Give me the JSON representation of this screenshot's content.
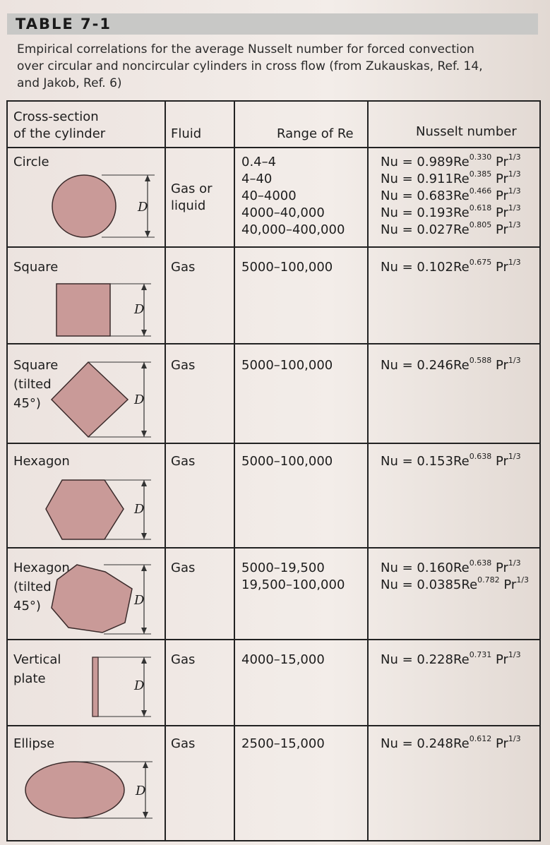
{
  "table_label": "TABLE 7-1",
  "caption_lines": [
    "Empirical correlations for the average Nusselt number for forced convection",
    "over circular and noncircular cylinders in cross flow (from Zukauskas, Ref. 14,",
    "and Jakob, Ref. 6)"
  ],
  "headers": {
    "cross_section_1": "Cross-section",
    "cross_section_2": "of the cylinder",
    "fluid": "Fluid",
    "range": "Range of Re",
    "nusselt": "Nusselt number"
  },
  "dimension_label": "D",
  "rows": [
    {
      "name_lines": [
        "Circle"
      ],
      "fluid_lines": [
        "Gas or",
        "liquid"
      ],
      "ranges": [
        "0.4–4",
        "4–40",
        "40–4000",
        "4000–40,000",
        "40,000–400,000"
      ],
      "nusselt": [
        {
          "lhs": "Nu = ",
          "coef": "0.989",
          "re": "Re",
          "re_exp": "0.330",
          "pr": " Pr",
          "pr_exp": "1/3"
        },
        {
          "lhs": "Nu = ",
          "coef": "0.911",
          "re": "Re",
          "re_exp": "0.385",
          "pr": " Pr",
          "pr_exp": "1/3"
        },
        {
          "lhs": "Nu = ",
          "coef": "0.683",
          "re": "Re",
          "re_exp": "0.466",
          "pr": " Pr",
          "pr_exp": "1/3"
        },
        {
          "lhs": "Nu = ",
          "coef": "0.193",
          "re": "Re",
          "re_exp": "0.618",
          "pr": " Pr",
          "pr_exp": "1/3"
        },
        {
          "lhs": "Nu = ",
          "coef": "0.027",
          "re": "Re",
          "re_exp": "0.805",
          "pr": " Pr",
          "pr_exp": "1/3"
        }
      ]
    },
    {
      "name_lines": [
        "Square"
      ],
      "fluid_lines": [
        "Gas"
      ],
      "ranges": [
        "5000–100,000"
      ],
      "nusselt": [
        {
          "lhs": "Nu = ",
          "coef": "0.102",
          "re": "Re",
          "re_exp": "0.675",
          "pr": " Pr",
          "pr_exp": "1/3"
        }
      ]
    },
    {
      "name_lines": [
        "Square",
        "(tilted",
        "45°)"
      ],
      "fluid_lines": [
        "Gas"
      ],
      "ranges": [
        "5000–100,000"
      ],
      "nusselt": [
        {
          "lhs": "Nu = ",
          "coef": "0.246",
          "re": "Re",
          "re_exp": "0.588",
          "pr": " Pr",
          "pr_exp": "1/3"
        }
      ]
    },
    {
      "name_lines": [
        "Hexagon"
      ],
      "fluid_lines": [
        "Gas"
      ],
      "ranges": [
        "5000–100,000"
      ],
      "nusselt": [
        {
          "lhs": "Nu = ",
          "coef": "0.153",
          "re": "Re",
          "re_exp": "0.638",
          "pr": " Pr",
          "pr_exp": "1/3"
        }
      ]
    },
    {
      "name_lines": [
        "Hexagon",
        "(tilted",
        "45°)"
      ],
      "fluid_lines": [
        "Gas"
      ],
      "ranges": [
        "5000–19,500",
        "19,500–100,000"
      ],
      "nusselt": [
        {
          "lhs": "Nu = ",
          "coef": "0.160",
          "re": "Re",
          "re_exp": "0.638",
          "pr": " Pr",
          "pr_exp": "1/3"
        },
        {
          "lhs": "Nu = ",
          "coef": "0.0385",
          "re": "Re",
          "re_exp": "0.782",
          "pr": " Pr",
          "pr_exp": "1/3"
        }
      ]
    },
    {
      "name_lines": [
        "Vertical",
        "plate"
      ],
      "fluid_lines": [
        "Gas"
      ],
      "ranges": [
        "4000–15,000"
      ],
      "nusselt": [
        {
          "lhs": "Nu = ",
          "coef": "0.228",
          "re": "Re",
          "re_exp": "0.731",
          "pr": " Pr",
          "pr_exp": "1/3"
        }
      ]
    },
    {
      "name_lines": [
        "Ellipse"
      ],
      "fluid_lines": [
        "Gas"
      ],
      "ranges": [
        "2500–15,000"
      ],
      "nusselt": [
        {
          "lhs": "Nu = ",
          "coef": "0.248",
          "re": "Re",
          "re_exp": "0.612",
          "pr": " Pr",
          "pr_exp": "1/3"
        }
      ]
    }
  ],
  "colors": {
    "shape_fill": "#c99a98",
    "shape_stroke": "#3a2a2a",
    "title_bar": "#c8c8c6"
  }
}
